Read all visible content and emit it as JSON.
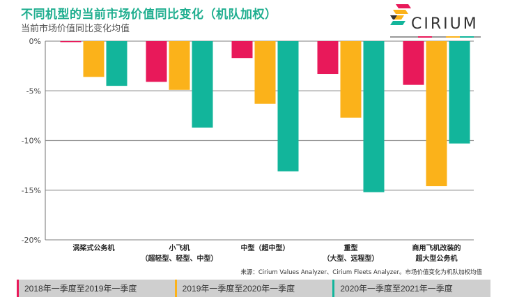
{
  "header": {
    "title": "不同机型的当前市场价值同比变化（机队加权）",
    "subtitle": "当前市场价值同比变化均值",
    "logo_text": "CIRIUM"
  },
  "source_note": "来源：Cirium Values Analyzer、Cirium Fleets Analyzer。市场价值变化为机队加权均值",
  "colors": {
    "title": "#1fae8f",
    "series1": "#e8195a",
    "series2": "#fbb21a",
    "series3": "#12b59b",
    "legend_bg": "#cfcfcf"
  },
  "chart_data": {
    "type": "bar",
    "title": "不同机型的当前市场价值同比变化（机队加权）",
    "ylabel": "当前市场价值同比变化均值",
    "xlabel": "",
    "ylim": [
      -20,
      0
    ],
    "yticks": [
      0,
      -5,
      -10,
      -15,
      -20
    ],
    "ytick_labels": [
      "0%",
      "-5%",
      "-10%",
      "-15%",
      "-20%"
    ],
    "grid": true,
    "legend_position": "bottom",
    "categories": [
      [
        "涡桨式公务机"
      ],
      [
        "小飞机",
        "（超轻型、轻型、中型）"
      ],
      [
        "中型（超中型）"
      ],
      [
        "重型",
        "（大型、远程型）"
      ],
      [
        "商用飞机改装的",
        "超大型公务机"
      ]
    ],
    "series": [
      {
        "name": "2018年一季度至2019年一季度",
        "color": "#e8195a",
        "values": [
          -0.1,
          -4.1,
          -1.7,
          -3.3,
          -4.4
        ]
      },
      {
        "name": "2019年一季度至2020年一季度",
        "color": "#fbb21a",
        "values": [
          -3.6,
          -4.9,
          -6.3,
          -7.7,
          -14.6
        ]
      },
      {
        "name": "2020年一季度至2021年一季度",
        "color": "#12b59b",
        "values": [
          -4.5,
          -8.7,
          -13.1,
          -15.2,
          -10.3
        ]
      }
    ]
  }
}
